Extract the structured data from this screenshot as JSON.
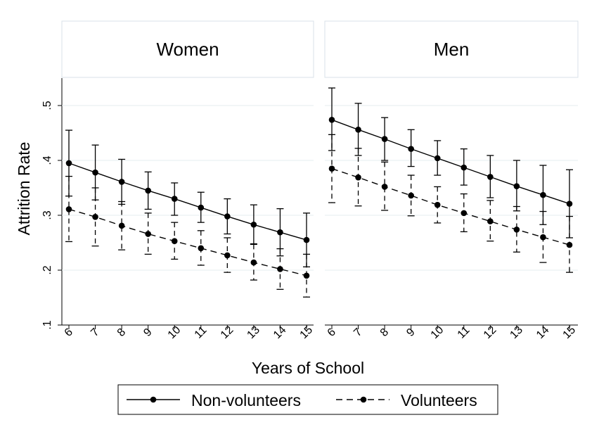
{
  "chart_data": {
    "type": "line",
    "ylabel": "Attrition Rate",
    "xlabel": "Years of School",
    "ylim": [
      0.1,
      0.55
    ],
    "yticks": [
      0.1,
      0.2,
      0.3,
      0.4,
      0.5
    ],
    "ytick_labels": [
      ".1",
      ".2",
      ".3",
      ".4",
      ".5"
    ],
    "x": [
      6,
      7,
      8,
      9,
      10,
      11,
      12,
      13,
      14,
      15
    ],
    "x_tick_labels": [
      "6",
      "7",
      "8",
      "9",
      "10",
      "11",
      "12",
      "13",
      "14",
      "15"
    ],
    "legend": {
      "position": "bottom",
      "entries": [
        {
          "name": "Non-volunteers",
          "style": "solid"
        },
        {
          "name": "Volunteers",
          "style": "dashed"
        }
      ]
    },
    "panels": [
      {
        "title": "Women",
        "series": [
          {
            "name": "Non-volunteers",
            "style": "solid",
            "values": [
              0.395,
              0.378,
              0.361,
              0.345,
              0.33,
              0.314,
              0.298,
              0.283,
              0.269,
              0.255
            ],
            "ci_low": [
              0.335,
              0.328,
              0.32,
              0.311,
              0.3,
              0.287,
              0.266,
              0.248,
              0.226,
              0.206
            ],
            "ci_high": [
              0.455,
              0.428,
              0.402,
              0.379,
              0.359,
              0.342,
              0.33,
              0.319,
              0.312,
              0.304
            ]
          },
          {
            "name": "Volunteers",
            "style": "dashed",
            "values": [
              0.311,
              0.297,
              0.281,
              0.266,
              0.253,
              0.24,
              0.227,
              0.214,
              0.202,
              0.19
            ],
            "ci_low": [
              0.252,
              0.244,
              0.237,
              0.229,
              0.22,
              0.209,
              0.196,
              0.182,
              0.165,
              0.151
            ],
            "ci_high": [
              0.371,
              0.35,
              0.325,
              0.304,
              0.287,
              0.272,
              0.259,
              0.247,
              0.239,
              0.229
            ]
          }
        ]
      },
      {
        "title": "Men",
        "series": [
          {
            "name": "Non-volunteers",
            "style": "solid",
            "values": [
              0.474,
              0.456,
              0.439,
              0.421,
              0.404,
              0.387,
              0.37,
              0.353,
              0.337,
              0.321
            ],
            "ci_low": [
              0.418,
              0.409,
              0.4,
              0.389,
              0.373,
              0.355,
              0.332,
              0.308,
              0.283,
              0.259
            ],
            "ci_high": [
              0.532,
              0.504,
              0.478,
              0.456,
              0.436,
              0.421,
              0.409,
              0.4,
              0.391,
              0.383
            ]
          },
          {
            "name": "Volunteers",
            "style": "dashed",
            "values": [
              0.385,
              0.369,
              0.352,
              0.336,
              0.319,
              0.304,
              0.289,
              0.274,
              0.26,
              0.246
            ],
            "ci_low": [
              0.323,
              0.317,
              0.309,
              0.299,
              0.286,
              0.27,
              0.253,
              0.233,
              0.214,
              0.196
            ],
            "ci_high": [
              0.447,
              0.422,
              0.397,
              0.373,
              0.352,
              0.339,
              0.327,
              0.316,
              0.307,
              0.298
            ]
          }
        ]
      }
    ]
  }
}
